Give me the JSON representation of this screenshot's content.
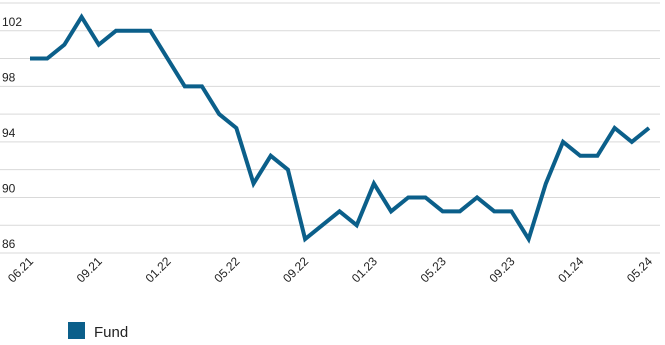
{
  "chart_data": {
    "type": "line",
    "categories": [
      "06.21",
      null,
      null,
      null,
      "09.21",
      null,
      null,
      null,
      "01.22",
      null,
      null,
      null,
      "05.22",
      null,
      null,
      null,
      "09.22",
      null,
      null,
      null,
      "01.23",
      null,
      null,
      null,
      "05.23",
      null,
      null,
      null,
      "09.23",
      null,
      null,
      null,
      "01.24",
      null,
      null,
      null,
      "05.24"
    ],
    "series": [
      {
        "name": "Fund",
        "color": "#0b5f8a",
        "values": [
          100,
          100,
          101,
          103,
          101,
          102,
          102,
          102,
          100,
          98,
          98,
          96,
          95,
          91,
          93,
          92,
          87,
          88,
          89,
          88,
          91,
          89,
          90,
          90,
          89,
          89,
          90,
          89,
          89,
          87,
          91,
          94,
          93,
          93,
          95,
          94,
          95
        ]
      }
    ],
    "ylim": [
      86,
      104
    ],
    "yticks": [
      86,
      90,
      94,
      98,
      102
    ],
    "grid_yticks": [
      86,
      88,
      90,
      92,
      94,
      96,
      98,
      100,
      102,
      104
    ],
    "grid": true,
    "legend": "bottom-left"
  }
}
